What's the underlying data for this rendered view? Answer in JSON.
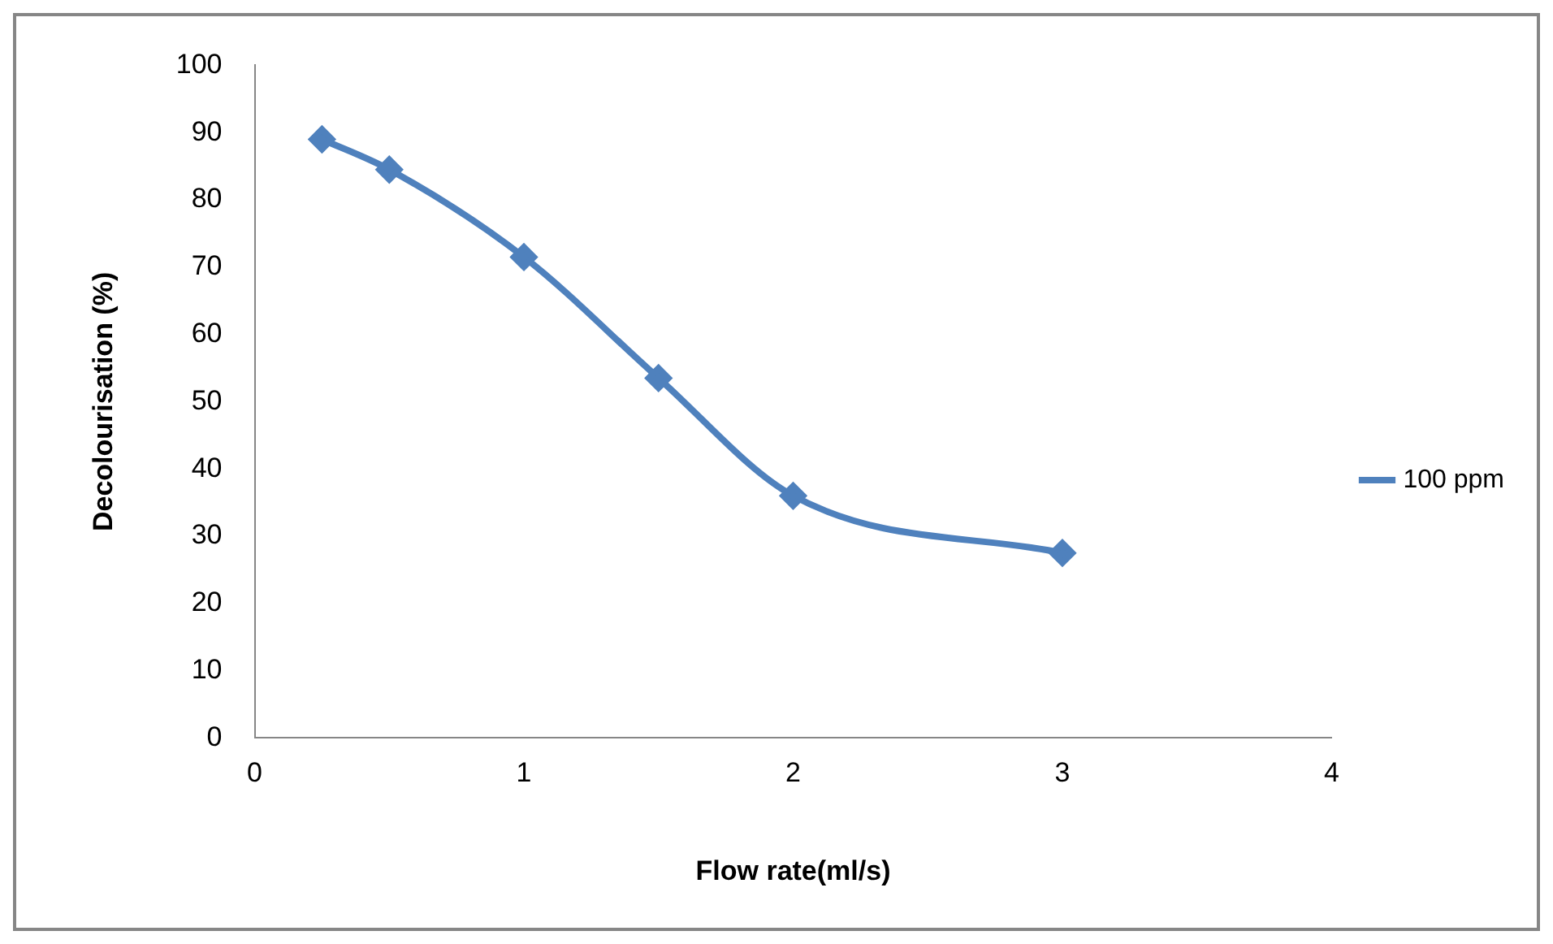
{
  "chart_data": {
    "type": "line",
    "xlabel": "Flow rate(ml/s)",
    "ylabel": "Decolourisation (%)",
    "x": [
      0.25,
      0.5,
      1,
      1.5,
      2,
      3
    ],
    "series": [
      {
        "name": "100 ppm",
        "color": "#4f81bd",
        "values": [
          89,
          84.5,
          71.5,
          53.5,
          36,
          27.5
        ]
      }
    ],
    "xlim": [
      0,
      4
    ],
    "xticks": [
      0,
      1,
      2,
      3,
      4
    ],
    "ylim": [
      0,
      100
    ],
    "yticks": [
      0,
      10,
      20,
      30,
      40,
      50,
      60,
      70,
      80,
      90,
      100
    ],
    "grid": false,
    "legend": "right",
    "marker": "diamond",
    "line_style": "solid"
  }
}
